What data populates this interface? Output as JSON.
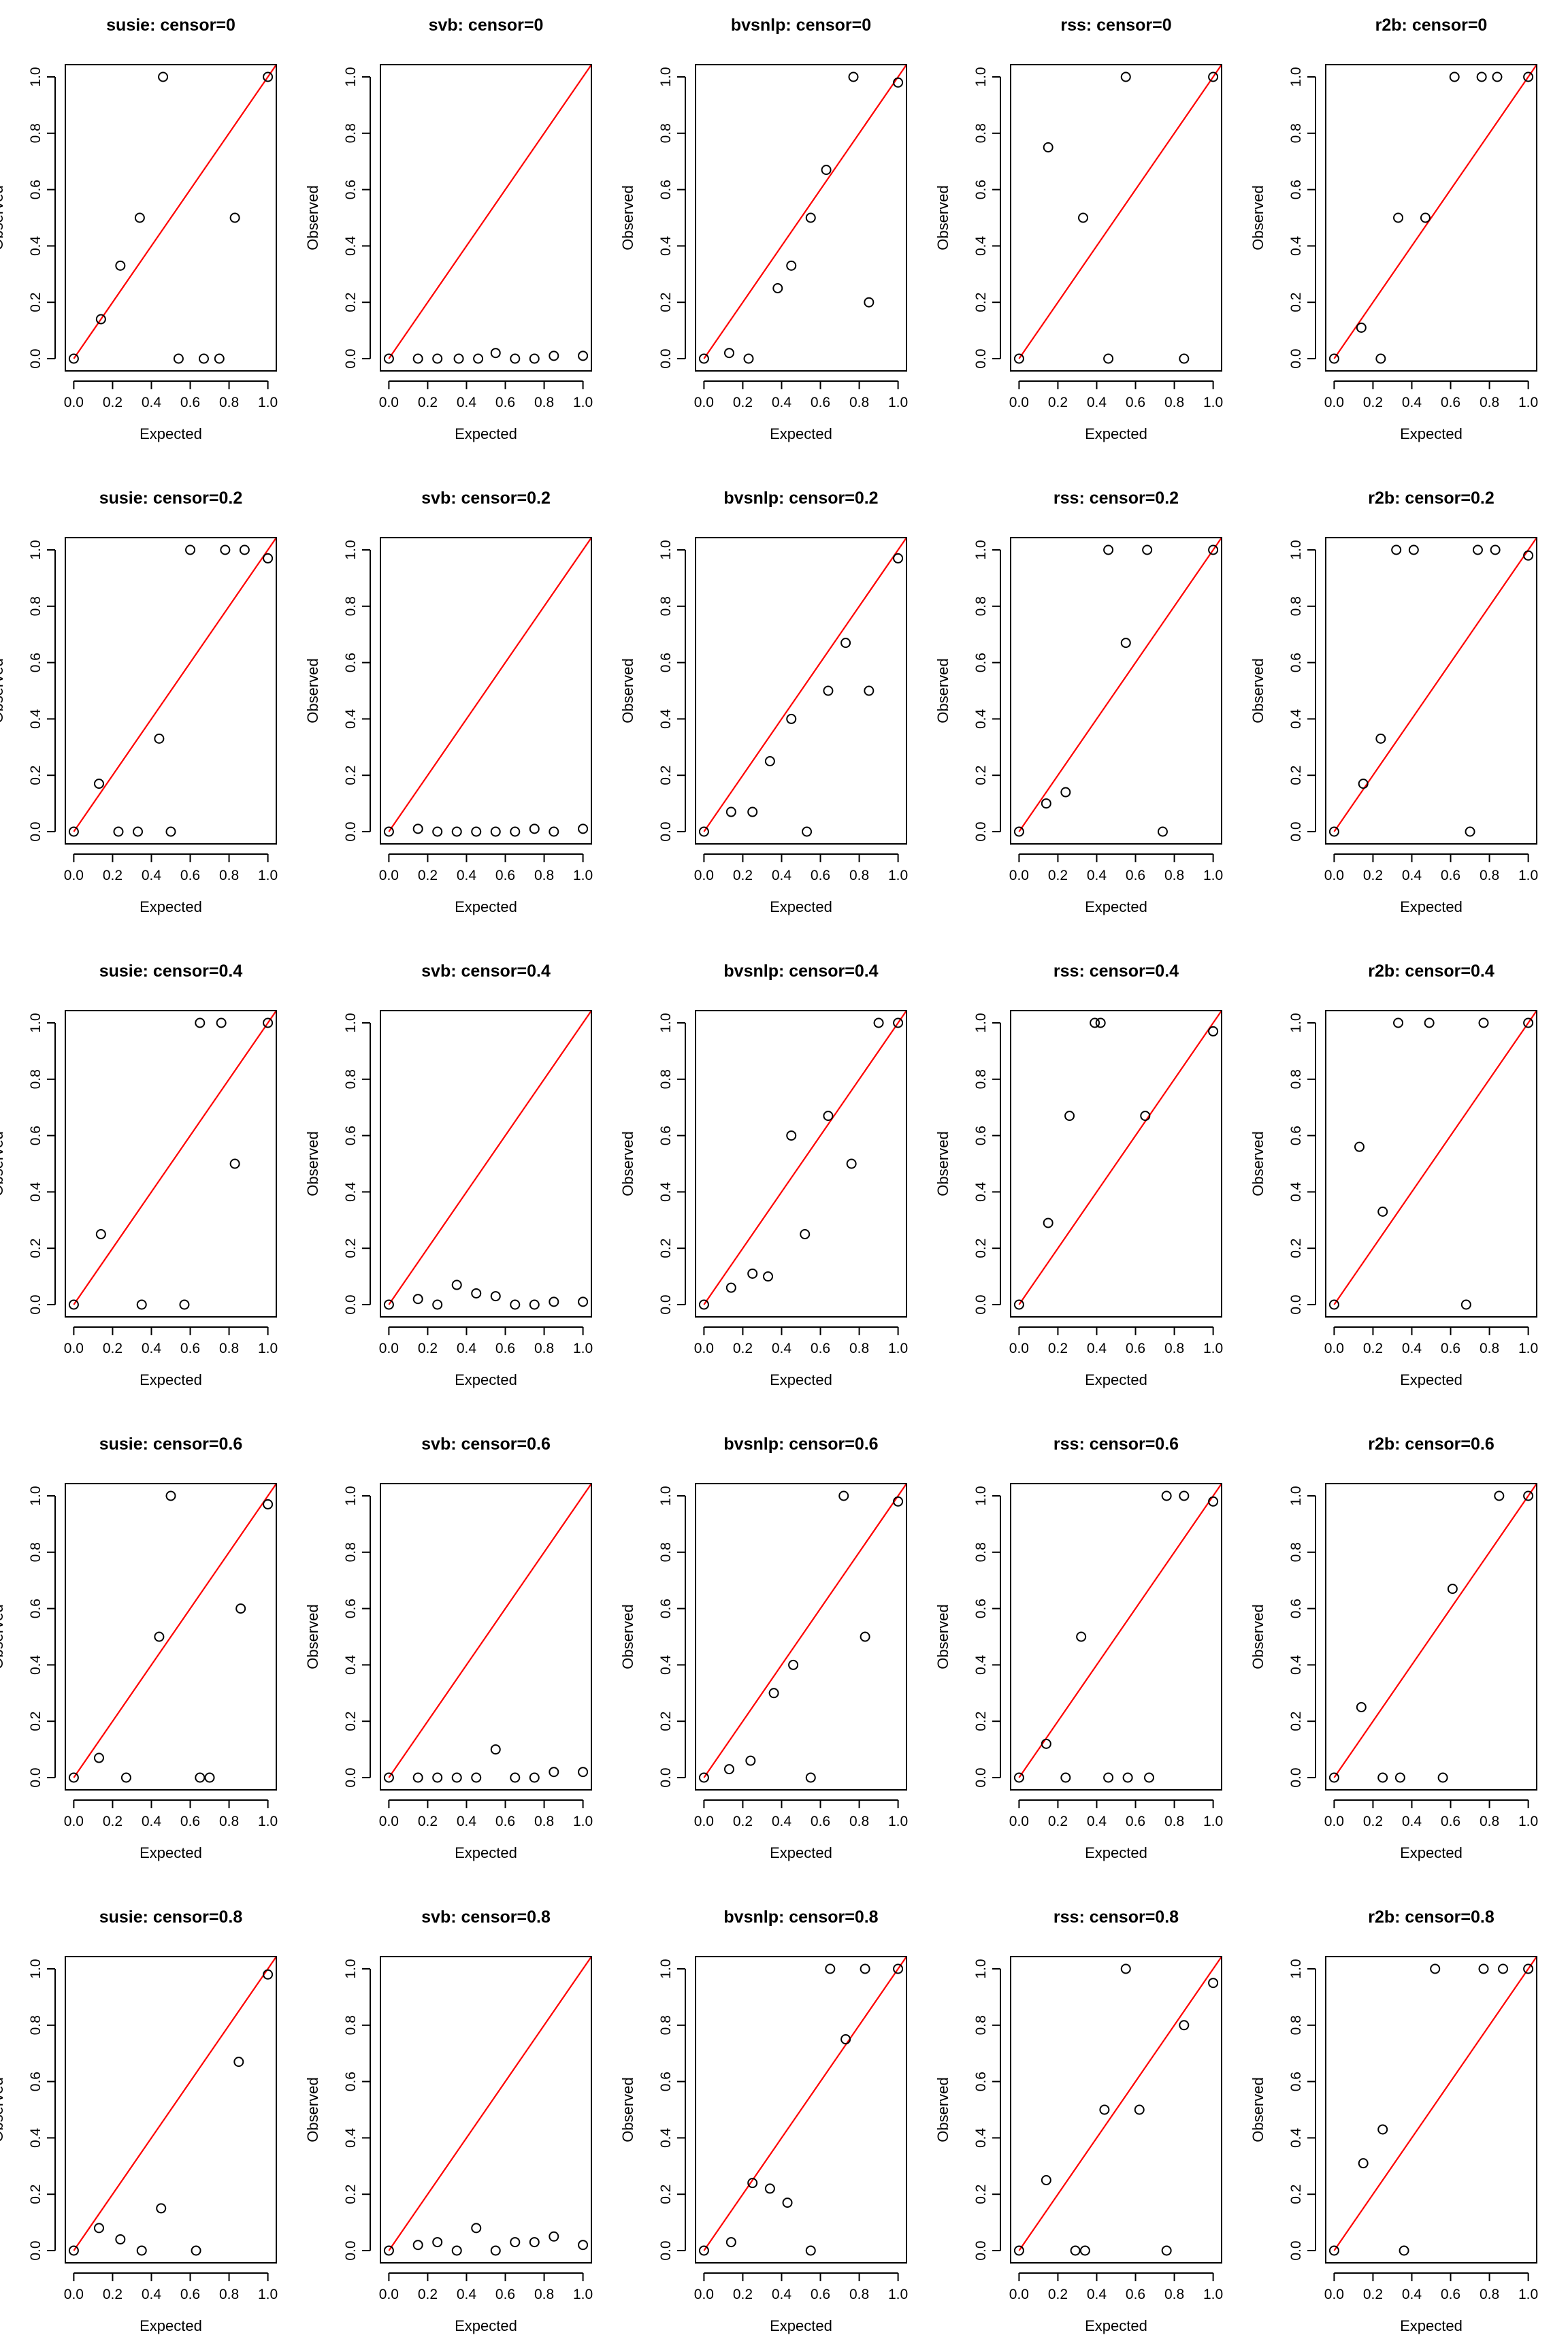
{
  "xlabel": "Expected",
  "ylabel": "Observed",
  "tick_labels": [
    "0.0",
    "0.2",
    "0.4",
    "0.6",
    "0.8",
    "1.0"
  ],
  "colors": {
    "reference_line": "#ff0000",
    "points": "#000000",
    "axes": "#000000"
  },
  "chart_data": [
    {
      "type": "scatter",
      "title": "susie: censor=0",
      "xlim": [
        0,
        1
      ],
      "ylim": [
        0,
        1
      ],
      "reference_line": "y = x",
      "x": [
        0,
        0.14,
        0.24,
        0.34,
        0.46,
        0.54,
        0.67,
        0.75,
        0.83,
        1.0
      ],
      "y": [
        0,
        0.14,
        0.33,
        0.5,
        1.0,
        0,
        0,
        0,
        0.5,
        1.0
      ]
    },
    {
      "type": "scatter",
      "title": "svb: censor=0",
      "xlim": [
        0,
        1
      ],
      "ylim": [
        0,
        1
      ],
      "reference_line": "y = x",
      "x": [
        0,
        0.15,
        0.25,
        0.36,
        0.46,
        0.55,
        0.65,
        0.75,
        0.85,
        1.0
      ],
      "y": [
        0,
        0,
        0,
        0,
        0,
        0.02,
        0,
        0,
        0.01,
        0.01
      ]
    },
    {
      "type": "scatter",
      "title": "bvsnlp: censor=0",
      "xlim": [
        0,
        1
      ],
      "ylim": [
        0,
        1
      ],
      "reference_line": "y = x",
      "x": [
        0,
        0.13,
        0.23,
        0.38,
        0.45,
        0.55,
        0.63,
        0.77,
        0.85,
        1.0
      ],
      "y": [
        0,
        0.02,
        0,
        0.25,
        0.33,
        0.5,
        0.67,
        1.0,
        0.2,
        0.98
      ]
    },
    {
      "type": "scatter",
      "title": "rss: censor=0",
      "xlim": [
        0,
        1
      ],
      "ylim": [
        0,
        1
      ],
      "reference_line": "y = x",
      "x": [
        0,
        0.15,
        0.33,
        0.46,
        0.55,
        0.85,
        1.0
      ],
      "y": [
        0,
        0.75,
        0.5,
        0,
        1.0,
        0,
        1.0
      ]
    },
    {
      "type": "scatter",
      "title": "r2b: censor=0",
      "xlim": [
        0,
        1
      ],
      "ylim": [
        0,
        1
      ],
      "reference_line": "y = x",
      "x": [
        0,
        0.14,
        0.24,
        0.33,
        0.47,
        0.62,
        0.76,
        0.84,
        1.0
      ],
      "y": [
        0,
        0.11,
        0,
        0.5,
        0.5,
        1.0,
        1.0,
        1.0,
        1.0
      ]
    },
    {
      "type": "scatter",
      "title": "susie: censor=0.2",
      "xlim": [
        0,
        1
      ],
      "ylim": [
        0,
        1
      ],
      "reference_line": "y = x",
      "x": [
        0,
        0.13,
        0.23,
        0.33,
        0.44,
        0.5,
        0.6,
        0.78,
        0.88,
        1.0
      ],
      "y": [
        0,
        0.17,
        0,
        0,
        0.33,
        0,
        1.0,
        1.0,
        1.0,
        0.97
      ]
    },
    {
      "type": "scatter",
      "title": "svb: censor=0.2",
      "xlim": [
        0,
        1
      ],
      "ylim": [
        0,
        1
      ],
      "reference_line": "y = x",
      "x": [
        0,
        0.15,
        0.25,
        0.35,
        0.45,
        0.55,
        0.65,
        0.75,
        0.85,
        1.0
      ],
      "y": [
        0,
        0.01,
        0,
        0,
        0,
        0,
        0,
        0.01,
        0,
        0.01
      ]
    },
    {
      "type": "scatter",
      "title": "bvsnlp: censor=0.2",
      "xlim": [
        0,
        1
      ],
      "ylim": [
        0,
        1
      ],
      "reference_line": "y = x",
      "x": [
        0,
        0.14,
        0.25,
        0.34,
        0.45,
        0.53,
        0.64,
        0.73,
        0.85,
        1.0
      ],
      "y": [
        0,
        0.07,
        0.07,
        0.25,
        0.4,
        0,
        0.5,
        0.67,
        0.5,
        0.97
      ]
    },
    {
      "type": "scatter",
      "title": "rss: censor=0.2",
      "xlim": [
        0,
        1
      ],
      "ylim": [
        0,
        1
      ],
      "reference_line": "y = x",
      "x": [
        0,
        0.14,
        0.24,
        0.46,
        0.55,
        0.66,
        0.74,
        1.0
      ],
      "y": [
        0,
        0.1,
        0.14,
        1.0,
        0.67,
        1.0,
        0,
        1.0
      ]
    },
    {
      "type": "scatter",
      "title": "r2b: censor=0.2",
      "xlim": [
        0,
        1
      ],
      "ylim": [
        0,
        1
      ],
      "reference_line": "y = x",
      "x": [
        0,
        0.15,
        0.24,
        0.32,
        0.41,
        0.7,
        0.74,
        0.83,
        1.0
      ],
      "y": [
        0,
        0.17,
        0.33,
        1.0,
        1.0,
        0,
        1.0,
        1.0,
        0.98
      ]
    },
    {
      "type": "scatter",
      "title": "susie: censor=0.4",
      "xlim": [
        0,
        1
      ],
      "ylim": [
        0,
        1
      ],
      "reference_line": "y = x",
      "x": [
        0,
        0.14,
        0.35,
        0.57,
        0.65,
        0.76,
        0.83,
        1.0
      ],
      "y": [
        0,
        0.25,
        0,
        0,
        1.0,
        1.0,
        0.5,
        1.0
      ]
    },
    {
      "type": "scatter",
      "title": "svb: censor=0.4",
      "xlim": [
        0,
        1
      ],
      "ylim": [
        0,
        1
      ],
      "reference_line": "y = x",
      "x": [
        0,
        0.15,
        0.25,
        0.35,
        0.45,
        0.55,
        0.65,
        0.75,
        0.85,
        1.0
      ],
      "y": [
        0,
        0.02,
        0,
        0.07,
        0.04,
        0.03,
        0,
        0,
        0.01,
        0.01
      ]
    },
    {
      "type": "scatter",
      "title": "bvsnlp: censor=0.4",
      "xlim": [
        0,
        1
      ],
      "ylim": [
        0,
        1
      ],
      "reference_line": "y = x",
      "x": [
        0,
        0.14,
        0.25,
        0.33,
        0.45,
        0.52,
        0.64,
        0.76,
        0.9,
        1.0
      ],
      "y": [
        0,
        0.06,
        0.11,
        0.1,
        0.6,
        0.25,
        0.67,
        0.5,
        1.0,
        1.0
      ]
    },
    {
      "type": "scatter",
      "title": "rss: censor=0.4",
      "xlim": [
        0,
        1
      ],
      "ylim": [
        0,
        1
      ],
      "reference_line": "y = x",
      "x": [
        0,
        0.15,
        0.26,
        0.39,
        0.42,
        0.65,
        1.0
      ],
      "y": [
        0,
        0.29,
        0.67,
        1.0,
        1.0,
        0.67,
        0.97
      ]
    },
    {
      "type": "scatter",
      "title": "r2b: censor=0.4",
      "xlim": [
        0,
        1
      ],
      "ylim": [
        0,
        1
      ],
      "reference_line": "y = x",
      "x": [
        0,
        0.13,
        0.25,
        0.33,
        0.49,
        0.68,
        0.77,
        1.0
      ],
      "y": [
        0,
        0.56,
        0.33,
        1.0,
        1.0,
        0,
        1.0,
        1.0
      ]
    },
    {
      "type": "scatter",
      "title": "susie: censor=0.6",
      "xlim": [
        0,
        1
      ],
      "ylim": [
        0,
        1
      ],
      "reference_line": "y = x",
      "x": [
        0,
        0.13,
        0.27,
        0.44,
        0.5,
        0.65,
        0.7,
        0.86,
        1.0
      ],
      "y": [
        0,
        0.07,
        0,
        0.5,
        1.0,
        0,
        0,
        0.6,
        0.97
      ]
    },
    {
      "type": "scatter",
      "title": "svb: censor=0.6",
      "xlim": [
        0,
        1
      ],
      "ylim": [
        0,
        1
      ],
      "reference_line": "y = x",
      "x": [
        0,
        0.15,
        0.25,
        0.35,
        0.45,
        0.55,
        0.65,
        0.75,
        0.85,
        1.0
      ],
      "y": [
        0,
        0,
        0,
        0,
        0,
        0.1,
        0,
        0,
        0.02,
        0.02
      ]
    },
    {
      "type": "scatter",
      "title": "bvsnlp: censor=0.6",
      "xlim": [
        0,
        1
      ],
      "ylim": [
        0,
        1
      ],
      "reference_line": "y = x",
      "x": [
        0,
        0.13,
        0.24,
        0.36,
        0.46,
        0.55,
        0.72,
        0.83,
        1.0
      ],
      "y": [
        0,
        0.03,
        0.06,
        0.3,
        0.4,
        0,
        1.0,
        0.5,
        0.98
      ]
    },
    {
      "type": "scatter",
      "title": "rss: censor=0.6",
      "xlim": [
        0,
        1
      ],
      "ylim": [
        0,
        1
      ],
      "reference_line": "y = x",
      "x": [
        0,
        0.14,
        0.24,
        0.32,
        0.46,
        0.56,
        0.67,
        0.76,
        0.85,
        1.0
      ],
      "y": [
        0,
        0.12,
        0,
        0.5,
        0,
        0,
        0,
        1.0,
        1.0,
        0.98
      ]
    },
    {
      "type": "scatter",
      "title": "r2b: censor=0.6",
      "xlim": [
        0,
        1
      ],
      "ylim": [
        0,
        1
      ],
      "reference_line": "y = x",
      "x": [
        0,
        0.14,
        0.25,
        0.34,
        0.56,
        0.61,
        0.85,
        1.0
      ],
      "y": [
        0,
        0.25,
        0,
        0,
        0,
        0.67,
        1.0,
        1.0
      ]
    },
    {
      "type": "scatter",
      "title": "susie: censor=0.8",
      "xlim": [
        0,
        1
      ],
      "ylim": [
        0,
        1
      ],
      "reference_line": "y = x",
      "x": [
        0,
        0.13,
        0.24,
        0.35,
        0.45,
        0.63,
        0.85,
        1.0
      ],
      "y": [
        0,
        0.08,
        0.04,
        0,
        0.15,
        0,
        0.67,
        0.98
      ]
    },
    {
      "type": "scatter",
      "title": "svb: censor=0.8",
      "xlim": [
        0,
        1
      ],
      "ylim": [
        0,
        1
      ],
      "reference_line": "y = x",
      "x": [
        0,
        0.15,
        0.25,
        0.35,
        0.45,
        0.55,
        0.65,
        0.75,
        0.85,
        1.0
      ],
      "y": [
        0,
        0.02,
        0.03,
        0,
        0.08,
        0,
        0.03,
        0.03,
        0.05,
        0.02
      ]
    },
    {
      "type": "scatter",
      "title": "bvsnlp: censor=0.8",
      "xlim": [
        0,
        1
      ],
      "ylim": [
        0,
        1
      ],
      "reference_line": "y = x",
      "x": [
        0,
        0.14,
        0.25,
        0.34,
        0.43,
        0.55,
        0.65,
        0.73,
        0.83,
        1.0
      ],
      "y": [
        0,
        0.03,
        0.24,
        0.22,
        0.17,
        0,
        1.0,
        0.75,
        1.0,
        1.0
      ]
    },
    {
      "type": "scatter",
      "title": "rss: censor=0.8",
      "xlim": [
        0,
        1
      ],
      "ylim": [
        0,
        1
      ],
      "reference_line": "y = x",
      "x": [
        0,
        0.14,
        0.29,
        0.34,
        0.44,
        0.55,
        0.62,
        0.76,
        0.85,
        1.0
      ],
      "y": [
        0,
        0.25,
        0,
        0,
        0.5,
        1.0,
        0.5,
        0,
        0.8,
        0.95
      ]
    },
    {
      "type": "scatter",
      "title": "r2b: censor=0.8",
      "xlim": [
        0,
        1
      ],
      "ylim": [
        0,
        1
      ],
      "reference_line": "y = x",
      "x": [
        0,
        0.15,
        0.25,
        0.36,
        0.52,
        0.77,
        0.87,
        1.0
      ],
      "y": [
        0,
        0.31,
        0.43,
        0,
        1.0,
        1.0,
        1.0,
        1.0
      ]
    }
  ]
}
